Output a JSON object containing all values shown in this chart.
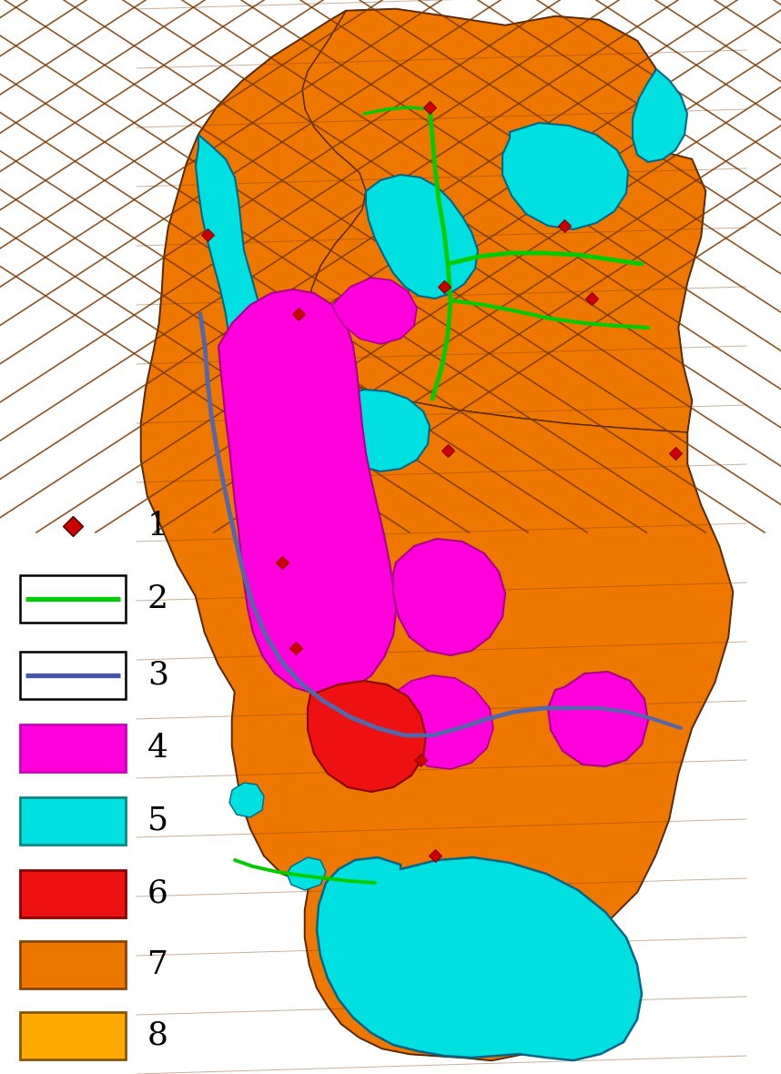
{
  "legend_items": [
    {
      "number": "1",
      "type": "diamond",
      "color": "#cc0000"
    },
    {
      "number": "2",
      "type": "line_box",
      "line_color": "#00cc00"
    },
    {
      "number": "3",
      "type": "line_box",
      "line_color": "#4455aa"
    },
    {
      "number": "4",
      "type": "rect",
      "facecolor": "#ff00dd",
      "edgecolor": "#cc00bb"
    },
    {
      "number": "5",
      "type": "rect",
      "facecolor": "#00e0e0",
      "edgecolor": "#008888"
    },
    {
      "number": "6",
      "type": "rect",
      "facecolor": "#ee1111",
      "edgecolor": "#880000"
    },
    {
      "number": "7",
      "type": "rect",
      "facecolor": "#ee7700",
      "edgecolor": "#884400"
    },
    {
      "number": "8",
      "type": "rect",
      "facecolor": "#ffaa00",
      "edgecolor": "#885500"
    }
  ],
  "map_colors": {
    "cluster1_red": "#ee1111",
    "cluster2_dark_orange": "#ee7700",
    "cluster3_yellow_orange": "#ffaa00",
    "magenta": "#ff00dd",
    "cyan": "#00e0e0",
    "grid_line": "#7a3800",
    "green_road": "#00cc00",
    "blue_road": "#5566aa",
    "outline": "#5a2800"
  },
  "background_color": "#ffffff",
  "figure_width": 8.58,
  "figure_height": 11.8
}
